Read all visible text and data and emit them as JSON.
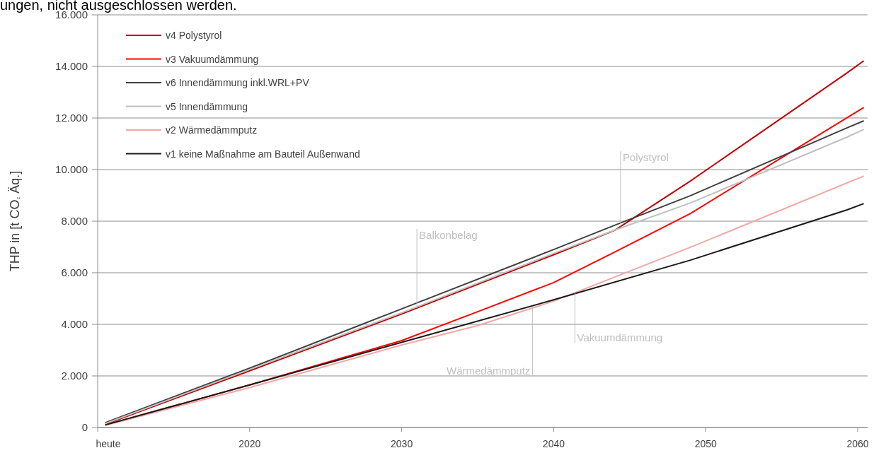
{
  "chart_data": {
    "type": "line",
    "ylabel": "THP  in [t CO₂  Äq.]",
    "xlim": [
      2010,
      2060.65
    ],
    "ylim": [
      0,
      16000
    ],
    "xticks": [
      {
        "value": 2010,
        "label": "heute"
      },
      2020,
      2030,
      2040,
      2050,
      2060
    ],
    "yticks": [
      {
        "value": 0,
        "label": "0"
      },
      {
        "value": 2000,
        "label": "2.000"
      },
      {
        "value": 4000,
        "label": "4.000"
      },
      {
        "value": 6000,
        "label": "6.000"
      },
      {
        "value": 8000,
        "label": "8.000"
      },
      {
        "value": 10000,
        "label": "10.000"
      },
      {
        "value": 12000,
        "label": "12.000"
      },
      {
        "value": 14000,
        "label": "14.000"
      },
      {
        "value": 16000,
        "label": "16.000"
      }
    ],
    "grid": "y",
    "legend": "top left",
    "marker": "none",
    "line_style": "solid",
    "series": [
      {
        "name": "v4 Polystyrol",
        "color": "#c00000",
        "x": [
          2010.5,
          2020,
          2030,
          2040,
          2044,
          2049,
          2059.3,
          2060.4
        ],
        "values": [
          120,
          2200,
          4400,
          6700,
          7640,
          9560,
          13750,
          14220
        ]
      },
      {
        "name": "v3 Vakuumdämmung",
        "color": "#ff0000",
        "x": [
          2010.5,
          2020,
          2030,
          2035,
          2040,
          2044,
          2049,
          2060.4
        ],
        "values": [
          100,
          1650,
          3370,
          4490,
          5620,
          6800,
          8300,
          12410
        ]
      },
      {
        "name": "v6 Innendämmung inkl.WRL+PV",
        "color": "#404040",
        "x": [
          2010.5,
          2020,
          2030,
          2040,
          2044,
          2049,
          2059.3,
          2060.4
        ],
        "values": [
          190,
          2300,
          4600,
          6900,
          7840,
          8990,
          11620,
          11890
        ]
      },
      {
        "name": "v5 Innendämmung",
        "color": "#bfbfbf",
        "x": [
          2010.5,
          2020,
          2030,
          2040,
          2044,
          2049,
          2059.3,
          2060.4
        ],
        "values": [
          150,
          2250,
          4450,
          6750,
          7650,
          8710,
          11260,
          11560
        ]
      },
      {
        "name": "v2 Wärmedämmputz",
        "color": "#f4a6a6",
        "x": [
          2010.5,
          2020,
          2030,
          2035,
          2040,
          2049,
          2060.4
        ],
        "values": [
          80,
          1550,
          3200,
          3950,
          4900,
          6990,
          9750
        ]
      },
      {
        "name": "v1 keine Maßnahme am Bauteil Außenwand",
        "color": "#1a1a1a",
        "x": [
          2010.5,
          2020,
          2030,
          2040,
          2049,
          2059.3,
          2060.4
        ],
        "values": [
          100,
          1650,
          3300,
          4950,
          6490,
          8440,
          8680
        ]
      }
    ],
    "annotations": [
      "ungen, nicht ausgeschlossen werden.",
      {
        "text": "Polystyrol",
        "x": 2044.4,
        "y": 7790
      },
      {
        "text": "Balkonbelag",
        "x": 2031,
        "y": 4630
      },
      {
        "text": "Wärmedämmputz",
        "x": 2038.6,
        "y": 4634
      },
      {
        "text": "Vakuumdämmung",
        "x": 2041.4,
        "y": 5225
      }
    ]
  }
}
